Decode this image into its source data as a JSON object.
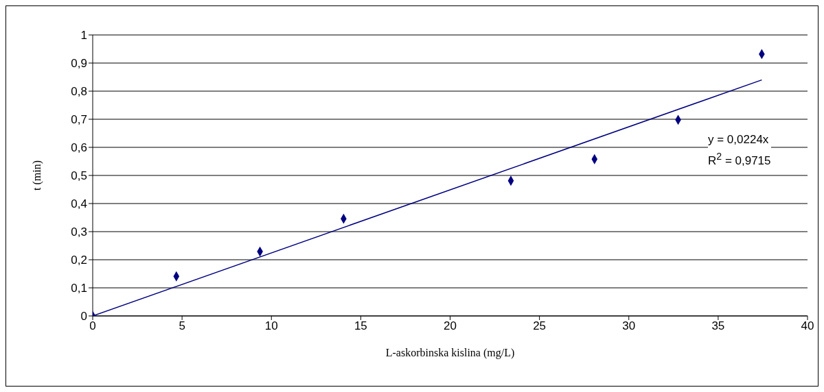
{
  "chart_data": {
    "type": "scatter",
    "xlabel": "L-askorbinska kislina (mg/L)",
    "ylabel": "t (min)",
    "series": [
      {
        "color": "#000080",
        "marker": "diamond",
        "x": [
          0,
          4.68,
          9.36,
          14.04,
          23.4,
          28.08,
          32.76,
          37.44
        ],
        "values": [
          0,
          0.141,
          0.229,
          0.346,
          0.481,
          0.558,
          0.698,
          0.932
        ]
      },
      {
        "type": "line",
        "color": "#000080",
        "marker": "none",
        "x": [
          0,
          37.44
        ],
        "values": [
          0,
          0.84
        ]
      }
    ],
    "annotations": [
      "y = 0,0224x",
      "R$^{2}$ = 0,9715"
    ],
    "xlim": [
      0,
      40
    ],
    "xticks": [
      0,
      5,
      10,
      15,
      20,
      25,
      30,
      35,
      40
    ],
    "ylim": [
      0,
      1
    ],
    "yticks": [
      0,
      {
        "value": 0.1,
        "label": "0,1"
      },
      {
        "value": 0.2,
        "label": "0,2"
      },
      {
        "value": 0.3,
        "label": "0,3"
      },
      {
        "value": 0.4,
        "label": "0,4"
      },
      {
        "value": 0.5,
        "label": "0,5"
      },
      {
        "value": 0.6,
        "label": "0,6"
      },
      {
        "value": 0.7,
        "label": "0,7"
      },
      {
        "value": 0.8,
        "label": "0,8"
      },
      {
        "value": 0.9,
        "label": "0,9"
      },
      1
    ],
    "grid": "y"
  }
}
